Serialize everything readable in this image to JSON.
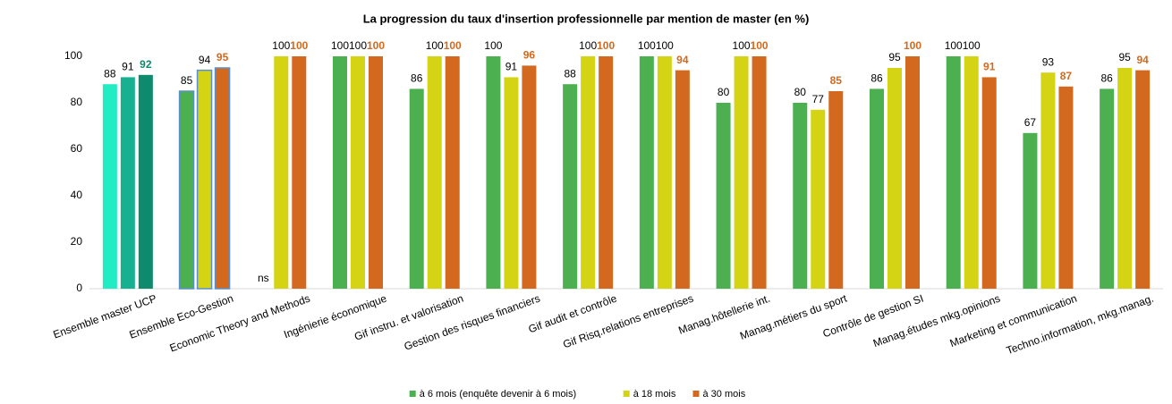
{
  "chart_data": {
    "type": "bar",
    "title": "La progression du taux d'insertion professionnelle par mention de master (en %)",
    "categories": [
      "Ensemble master UCP",
      "Ensemble Eco-Gestion",
      "Economic Theory and Methods",
      "Ingénierie économique",
      "Gif instru. et valorisation",
      "Gestion des risques financiers",
      "Gif audit et contrôle",
      "Gif Risq.relations entreprises",
      "Manag.hôtellerie int.",
      "Manag.métiers du sport",
      "Contrôle de gestion SI",
      "Manag.études mkg.opinions",
      "Marketing et communication",
      "Techno.information, mkg.manag."
    ],
    "series": [
      {
        "name": "à 6 mois (enquête devenir à 6 mois)",
        "color": "#4caf50",
        "values": [
          88,
          85,
          null,
          100,
          86,
          100,
          88,
          100,
          80,
          80,
          86,
          100,
          67,
          86
        ],
        "value_labels": [
          null,
          null,
          "ns",
          null,
          null,
          null,
          null,
          null,
          null,
          null,
          null,
          null,
          null,
          null
        ]
      },
      {
        "name": "à 18 mois",
        "color": "#d4d414",
        "values": [
          91,
          94,
          100,
          100,
          100,
          91,
          100,
          100,
          100,
          77,
          95,
          100,
          93,
          95
        ]
      },
      {
        "name": "à 30 mois",
        "color": "#d2691e",
        "values": [
          92,
          95,
          100,
          100,
          100,
          96,
          100,
          94,
          100,
          85,
          100,
          91,
          87,
          94
        ]
      }
    ],
    "highlight": {
      "category": 0,
      "colors": [
        "#22ecc4",
        "#17b090",
        "#0e8a6c"
      ]
    },
    "outline": {
      "category": 1,
      "color": "#5b8fc9"
    },
    "ylim": [
      0,
      100
    ],
    "yticks": [
      0,
      20,
      40,
      60,
      80,
      100
    ],
    "grid": false,
    "legend": "bottom"
  }
}
